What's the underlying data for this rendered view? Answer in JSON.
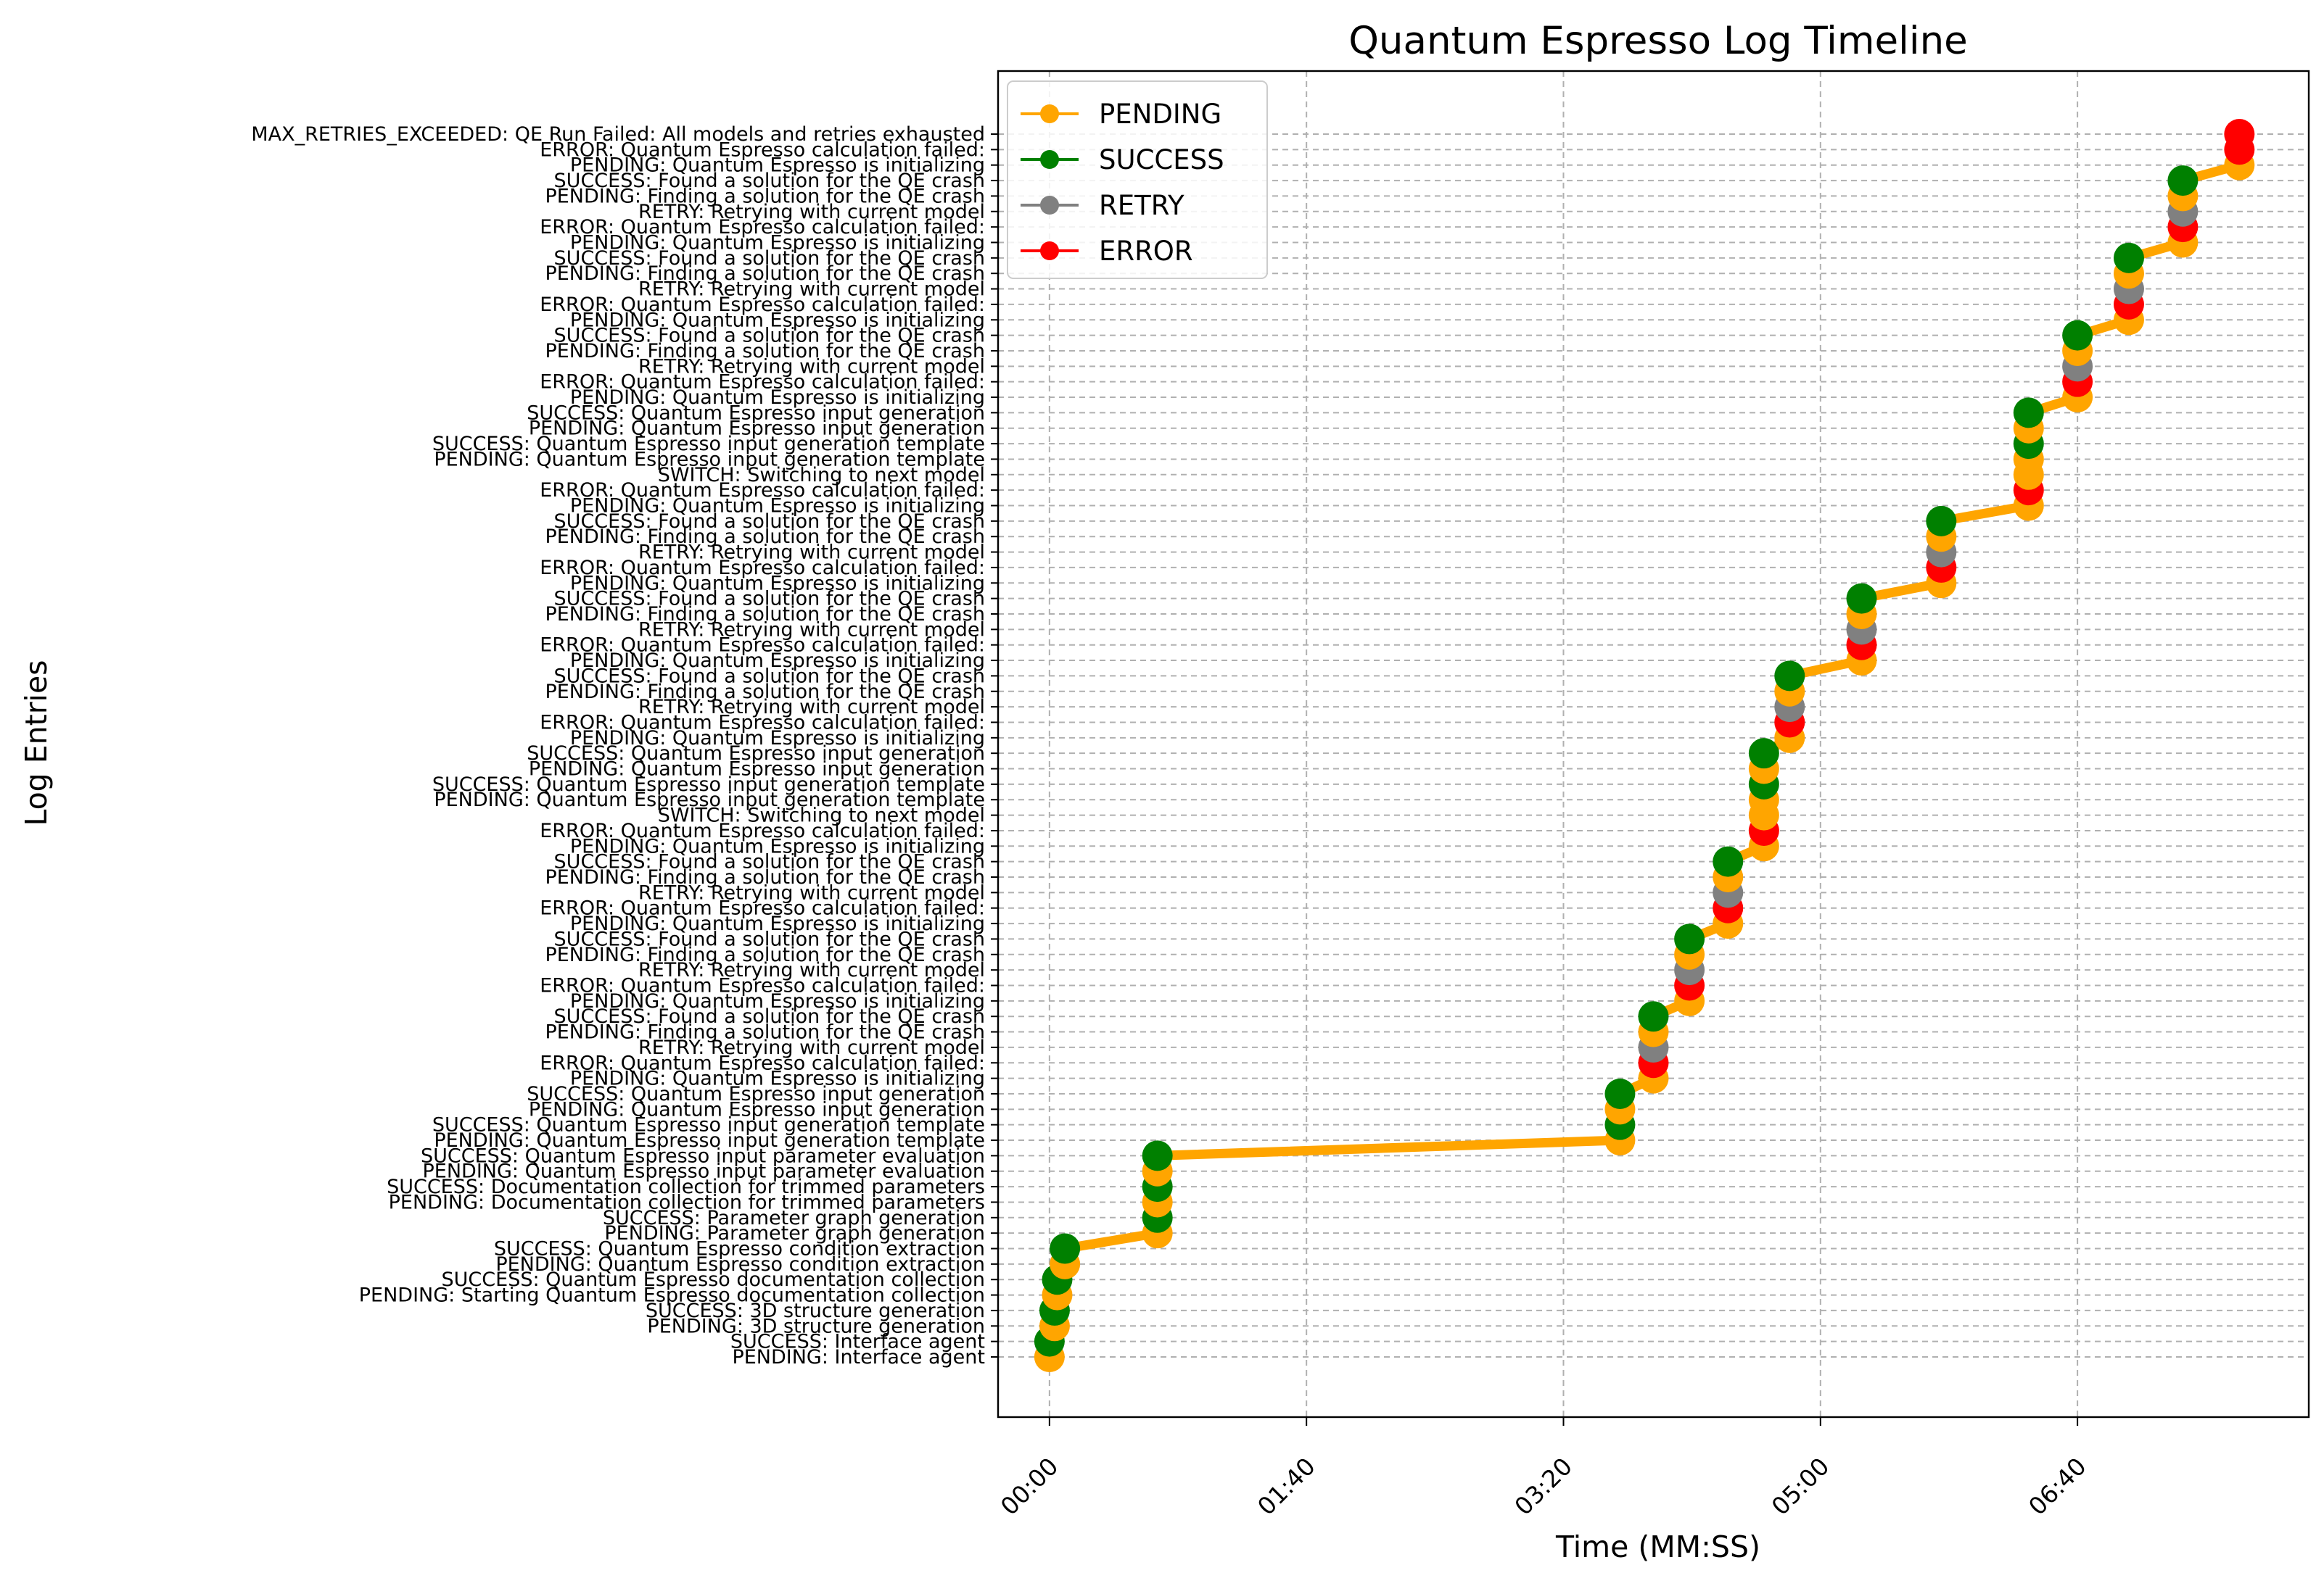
{
  "chart_data": {
    "type": "line",
    "title": "Quantum Espresso Log Timeline",
    "xlabel": "Time (MM:SS)",
    "ylabel": "Log Entries",
    "xlim": [
      -20,
      490
    ],
    "x_ticks": [
      {
        "value": 0,
        "label": "00:00"
      },
      {
        "value": 100,
        "label": "01:40"
      },
      {
        "value": 200,
        "label": "03:20"
      },
      {
        "value": 300,
        "label": "05:00"
      },
      {
        "value": 400,
        "label": "06:40"
      }
    ],
    "grid": true,
    "legend_position": "top-left",
    "legend": [
      {
        "name": "PENDING",
        "color": "#ffa500"
      },
      {
        "name": "SUCCESS",
        "color": "#008000"
      },
      {
        "name": "RETRY",
        "color": "#808080"
      },
      {
        "name": "ERROR",
        "color": "#ff0000"
      }
    ],
    "status_colors": {
      "PENDING": "#ffa500",
      "SUCCESS": "#008000",
      "RETRY": "#808080",
      "ERROR": "#ff0000",
      "SWITCH": "#ffa500",
      "MAX_RETRIES_EXCEEDED": "#ff0000"
    },
    "entries": [
      {
        "label": "PENDING: Interface agent",
        "status": "PENDING",
        "t": 0
      },
      {
        "label": "SUCCESS: Interface agent",
        "status": "SUCCESS",
        "t": 0
      },
      {
        "label": "PENDING: 3D structure generation",
        "status": "PENDING",
        "t": 2
      },
      {
        "label": "SUCCESS: 3D structure generation",
        "status": "SUCCESS",
        "t": 2
      },
      {
        "label": "PENDING: Starting Quantum Espresso documentation collection",
        "status": "PENDING",
        "t": 3
      },
      {
        "label": "SUCCESS: Quantum Espresso documentation collection",
        "status": "SUCCESS",
        "t": 3
      },
      {
        "label": "PENDING: Quantum Espresso condition extraction",
        "status": "PENDING",
        "t": 6
      },
      {
        "label": "SUCCESS: Quantum Espresso condition extraction",
        "status": "SUCCESS",
        "t": 6
      },
      {
        "label": "PENDING: Parameter graph generation",
        "status": "PENDING",
        "t": 42
      },
      {
        "label": "SUCCESS: Parameter graph generation",
        "status": "SUCCESS",
        "t": 42
      },
      {
        "label": "PENDING: Documentation collection for trimmed parameters",
        "status": "PENDING",
        "t": 42
      },
      {
        "label": "SUCCESS: Documentation collection for trimmed parameters",
        "status": "SUCCESS",
        "t": 42
      },
      {
        "label": "PENDING: Quantum Espresso input parameter evaluation",
        "status": "PENDING",
        "t": 42
      },
      {
        "label": "SUCCESS: Quantum Espresso input parameter evaluation",
        "status": "SUCCESS",
        "t": 42
      },
      {
        "label": "PENDING: Quantum Espresso input generation template",
        "status": "PENDING",
        "t": 222
      },
      {
        "label": "SUCCESS: Quantum Espresso input generation template",
        "status": "SUCCESS",
        "t": 222
      },
      {
        "label": "PENDING: Quantum Espresso input generation",
        "status": "PENDING",
        "t": 222
      },
      {
        "label": "SUCCESS: Quantum Espresso input generation",
        "status": "SUCCESS",
        "t": 222
      },
      {
        "label": "PENDING: Quantum Espresso is initializing",
        "status": "PENDING",
        "t": 235
      },
      {
        "label": "ERROR: Quantum Espresso calculation failed:",
        "status": "ERROR",
        "t": 235
      },
      {
        "label": "RETRY: Retrying with current model",
        "status": "RETRY",
        "t": 235
      },
      {
        "label": "PENDING: Finding a solution for the QE crash",
        "status": "PENDING",
        "t": 235
      },
      {
        "label": "SUCCESS: Found a solution for the QE crash",
        "status": "SUCCESS",
        "t": 235
      },
      {
        "label": "PENDING: Quantum Espresso is initializing",
        "status": "PENDING",
        "t": 249
      },
      {
        "label": "ERROR: Quantum Espresso calculation failed:",
        "status": "ERROR",
        "t": 249
      },
      {
        "label": "RETRY: Retrying with current model",
        "status": "RETRY",
        "t": 249
      },
      {
        "label": "PENDING: Finding a solution for the QE crash",
        "status": "PENDING",
        "t": 249
      },
      {
        "label": "SUCCESS: Found a solution for the QE crash",
        "status": "SUCCESS",
        "t": 249
      },
      {
        "label": "PENDING: Quantum Espresso is initializing",
        "status": "PENDING",
        "t": 264
      },
      {
        "label": "ERROR: Quantum Espresso calculation failed:",
        "status": "ERROR",
        "t": 264
      },
      {
        "label": "RETRY: Retrying with current model",
        "status": "RETRY",
        "t": 264
      },
      {
        "label": "PENDING: Finding a solution for the QE crash",
        "status": "PENDING",
        "t": 264
      },
      {
        "label": "SUCCESS: Found a solution for the QE crash",
        "status": "SUCCESS",
        "t": 264
      },
      {
        "label": "PENDING: Quantum Espresso is initializing",
        "status": "PENDING",
        "t": 278
      },
      {
        "label": "ERROR: Quantum Espresso calculation failed:",
        "status": "ERROR",
        "t": 278
      },
      {
        "label": "SWITCH: Switching to next model",
        "status": "SWITCH",
        "t": 278
      },
      {
        "label": "PENDING: Quantum Espresso input generation template",
        "status": "PENDING",
        "t": 278
      },
      {
        "label": "SUCCESS: Quantum Espresso input generation template",
        "status": "SUCCESS",
        "t": 278
      },
      {
        "label": "PENDING: Quantum Espresso input generation",
        "status": "PENDING",
        "t": 278
      },
      {
        "label": "SUCCESS: Quantum Espresso input generation",
        "status": "SUCCESS",
        "t": 278
      },
      {
        "label": "PENDING: Quantum Espresso is initializing",
        "status": "PENDING",
        "t": 288
      },
      {
        "label": "ERROR: Quantum Espresso calculation failed:",
        "status": "ERROR",
        "t": 288
      },
      {
        "label": "RETRY: Retrying with current model",
        "status": "RETRY",
        "t": 288
      },
      {
        "label": "PENDING: Finding a solution for the QE crash",
        "status": "PENDING",
        "t": 288
      },
      {
        "label": "SUCCESS: Found a solution for the QE crash",
        "status": "SUCCESS",
        "t": 288
      },
      {
        "label": "PENDING: Quantum Espresso is initializing",
        "status": "PENDING",
        "t": 316
      },
      {
        "label": "ERROR: Quantum Espresso calculation failed:",
        "status": "ERROR",
        "t": 316
      },
      {
        "label": "RETRY: Retrying with current model",
        "status": "RETRY",
        "t": 316
      },
      {
        "label": "PENDING: Finding a solution for the QE crash",
        "status": "PENDING",
        "t": 316
      },
      {
        "label": "SUCCESS: Found a solution for the QE crash",
        "status": "SUCCESS",
        "t": 316
      },
      {
        "label": "PENDING: Quantum Espresso is initializing",
        "status": "PENDING",
        "t": 347
      },
      {
        "label": "ERROR: Quantum Espresso calculation failed:",
        "status": "ERROR",
        "t": 347
      },
      {
        "label": "RETRY: Retrying with current model",
        "status": "RETRY",
        "t": 347
      },
      {
        "label": "PENDING: Finding a solution for the QE crash",
        "status": "PENDING",
        "t": 347
      },
      {
        "label": "SUCCESS: Found a solution for the QE crash",
        "status": "SUCCESS",
        "t": 347
      },
      {
        "label": "PENDING: Quantum Espresso is initializing",
        "status": "PENDING",
        "t": 381
      },
      {
        "label": "ERROR: Quantum Espresso calculation failed:",
        "status": "ERROR",
        "t": 381
      },
      {
        "label": "SWITCH: Switching to next model",
        "status": "SWITCH",
        "t": 381
      },
      {
        "label": "PENDING: Quantum Espresso input generation template",
        "status": "PENDING",
        "t": 381
      },
      {
        "label": "SUCCESS: Quantum Espresso input generation template",
        "status": "SUCCESS",
        "t": 381
      },
      {
        "label": "PENDING: Quantum Espresso input generation",
        "status": "PENDING",
        "t": 381
      },
      {
        "label": "SUCCESS: Quantum Espresso input generation",
        "status": "SUCCESS",
        "t": 381
      },
      {
        "label": "PENDING: Quantum Espresso is initializing",
        "status": "PENDING",
        "t": 400
      },
      {
        "label": "ERROR: Quantum Espresso calculation failed:",
        "status": "ERROR",
        "t": 400
      },
      {
        "label": "RETRY: Retrying with current model",
        "status": "RETRY",
        "t": 400
      },
      {
        "label": "PENDING: Finding a solution for the QE crash",
        "status": "PENDING",
        "t": 400
      },
      {
        "label": "SUCCESS: Found a solution for the QE crash",
        "status": "SUCCESS",
        "t": 400
      },
      {
        "label": "PENDING: Quantum Espresso is initializing",
        "status": "PENDING",
        "t": 420
      },
      {
        "label": "ERROR: Quantum Espresso calculation failed:",
        "status": "ERROR",
        "t": 420
      },
      {
        "label": "RETRY: Retrying with current model",
        "status": "RETRY",
        "t": 420
      },
      {
        "label": "PENDING: Finding a solution for the QE crash",
        "status": "PENDING",
        "t": 420
      },
      {
        "label": "SUCCESS: Found a solution for the QE crash",
        "status": "SUCCESS",
        "t": 420
      },
      {
        "label": "PENDING: Quantum Espresso is initializing",
        "status": "PENDING",
        "t": 441
      },
      {
        "label": "ERROR: Quantum Espresso calculation failed:",
        "status": "ERROR",
        "t": 441
      },
      {
        "label": "RETRY: Retrying with current model",
        "status": "RETRY",
        "t": 441
      },
      {
        "label": "PENDING: Finding a solution for the QE crash",
        "status": "PENDING",
        "t": 441
      },
      {
        "label": "SUCCESS: Found a solution for the QE crash",
        "status": "SUCCESS",
        "t": 441
      },
      {
        "label": "PENDING: Quantum Espresso is initializing",
        "status": "PENDING",
        "t": 463
      },
      {
        "label": "ERROR: Quantum Espresso calculation failed:",
        "status": "ERROR",
        "t": 463
      },
      {
        "label": "MAX_RETRIES_EXCEEDED: QE Run Failed: All models and retries exhausted",
        "status": "MAX_RETRIES_EXCEEDED",
        "t": 463
      }
    ]
  }
}
